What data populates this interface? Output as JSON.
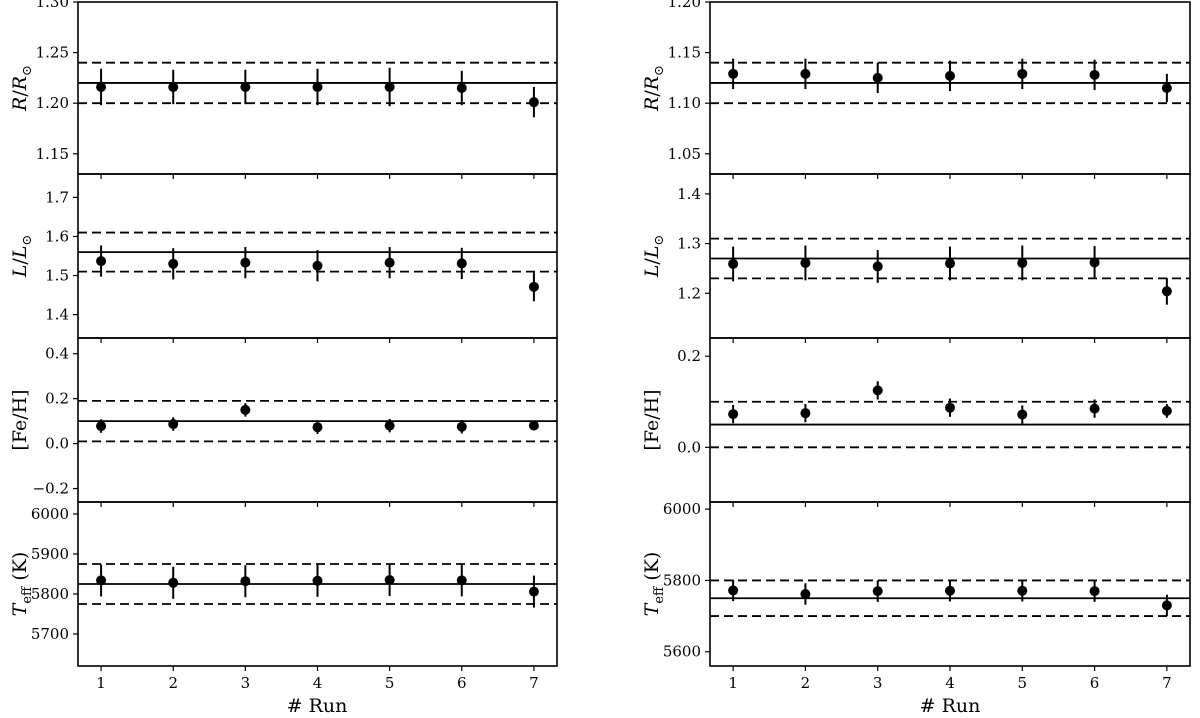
{
  "figure": {
    "xlabel": "# Run",
    "colors": {
      "marker": "#000000",
      "line": "#000000",
      "background": "#ffffff"
    }
  },
  "chart_data": [
    {
      "type": "scatter",
      "column": "left",
      "panel": "radius",
      "ylabel_main": "R",
      "ylabel_sub": "R",
      "ylabel_sub_symbol": "⊙",
      "ylim": [
        1.13,
        1.3
      ],
      "yticks": [
        "1.15",
        "1.20",
        "1.25",
        "1.30"
      ],
      "ytick_values": [
        1.15,
        1.2,
        1.25,
        1.3
      ],
      "x": [
        1,
        2,
        3,
        4,
        5,
        6,
        7
      ],
      "y": [
        1.216,
        1.216,
        1.216,
        1.216,
        1.216,
        1.215,
        1.201
      ],
      "yerr": [
        0.018,
        0.017,
        0.017,
        0.018,
        0.019,
        0.017,
        0.015
      ],
      "reference": 1.22,
      "band": [
        1.2,
        1.24
      ]
    },
    {
      "type": "scatter",
      "column": "left",
      "panel": "luminosity",
      "ylabel_main": "L",
      "ylabel_sub": "L",
      "ylabel_sub_symbol": "⊙",
      "ylim": [
        1.34,
        1.76
      ],
      "yticks": [
        "1.4",
        "1.5",
        "1.6",
        "1.7"
      ],
      "ytick_values": [
        1.4,
        1.5,
        1.6,
        1.7
      ],
      "x": [
        1,
        2,
        3,
        4,
        5,
        6,
        7
      ],
      "y": [
        1.537,
        1.53,
        1.533,
        1.525,
        1.533,
        1.531,
        1.471
      ],
      "yerr": [
        0.04,
        0.04,
        0.04,
        0.04,
        0.04,
        0.04,
        0.037
      ],
      "reference": 1.56,
      "band": [
        1.51,
        1.61
      ]
    },
    {
      "type": "scatter",
      "column": "left",
      "panel": "metallicity",
      "ylabel_main": "[Fe/H]",
      "ylim": [
        -0.26,
        0.47
      ],
      "yticks": [
        "−0.2",
        "0.0",
        "0.2",
        "0.4"
      ],
      "ytick_values": [
        -0.2,
        0.0,
        0.2,
        0.4
      ],
      "x": [
        1,
        2,
        3,
        4,
        5,
        6,
        7
      ],
      "y": [
        0.078,
        0.087,
        0.15,
        0.073,
        0.08,
        0.075,
        0.08
      ],
      "yerr": [
        0.03,
        0.03,
        0.03,
        0.03,
        0.03,
        0.03,
        0.015
      ],
      "reference": 0.1,
      "band": [
        0.01,
        0.19
      ]
    },
    {
      "type": "scatter",
      "column": "left",
      "panel": "temperature",
      "ylabel_main": "T",
      "ylabel_sub": "eff",
      "ylabel_unit": "(K)",
      "ylim": [
        5620,
        6030
      ],
      "yticks": [
        "5700",
        "5800",
        "5900",
        "6000"
      ],
      "ytick_values": [
        5700,
        5800,
        5900,
        6000
      ],
      "x": [
        1,
        2,
        3,
        4,
        5,
        6,
        7
      ],
      "y": [
        5834,
        5828,
        5832,
        5833,
        5835,
        5834,
        5806
      ],
      "yerr": [
        40,
        40,
        40,
        40,
        40,
        40,
        40
      ],
      "reference": 5825,
      "band": [
        5775,
        5875
      ]
    },
    {
      "type": "scatter",
      "column": "right",
      "panel": "radius",
      "ylabel_main": "R",
      "ylabel_sub": "R",
      "ylabel_sub_symbol": "⊙",
      "ylim": [
        1.03,
        1.2
      ],
      "yticks": [
        "1.05",
        "1.10",
        "1.15",
        "1.20"
      ],
      "ytick_values": [
        1.05,
        1.1,
        1.15,
        1.2
      ],
      "x": [
        1,
        2,
        3,
        4,
        5,
        6,
        7
      ],
      "y": [
        1.129,
        1.129,
        1.125,
        1.127,
        1.129,
        1.128,
        1.115
      ],
      "yerr": [
        0.015,
        0.015,
        0.015,
        0.015,
        0.015,
        0.015,
        0.014
      ],
      "reference": 1.12,
      "band": [
        1.1,
        1.14
      ]
    },
    {
      "type": "scatter",
      "column": "right",
      "panel": "luminosity",
      "ylabel_main": "L",
      "ylabel_sub": "L",
      "ylabel_sub_symbol": "⊙",
      "ylim": [
        1.11,
        1.44
      ],
      "yticks": [
        "1.2",
        "1.3",
        "1.4"
      ],
      "ytick_values": [
        1.2,
        1.3,
        1.4
      ],
      "x": [
        1,
        2,
        3,
        4,
        5,
        6,
        7
      ],
      "y": [
        1.259,
        1.261,
        1.254,
        1.26,
        1.261,
        1.262,
        1.204
      ],
      "yerr": [
        0.035,
        0.035,
        0.033,
        0.034,
        0.035,
        0.033,
        0.027
      ],
      "reference": 1.27,
      "band": [
        1.23,
        1.31
      ]
    },
    {
      "type": "scatter",
      "column": "right",
      "panel": "metallicity",
      "ylabel_main": "[Fe/H]",
      "ylim": [
        -0.12,
        0.24
      ],
      "yticks": [
        "0.0",
        "0.2"
      ],
      "ytick_values": [
        0.0,
        0.2
      ],
      "x": [
        1,
        2,
        3,
        4,
        5,
        6,
        7
      ],
      "y": [
        0.073,
        0.075,
        0.125,
        0.087,
        0.072,
        0.085,
        0.08
      ],
      "yerr": [
        0.02,
        0.02,
        0.02,
        0.02,
        0.02,
        0.02,
        0.015
      ],
      "reference": 0.05,
      "band": [
        0.0,
        0.1
      ]
    },
    {
      "type": "scatter",
      "column": "right",
      "panel": "temperature",
      "ylabel_main": "T",
      "ylabel_sub": "eff",
      "ylabel_unit": "(K)",
      "ylim": [
        5560,
        6020
      ],
      "yticks": [
        "5600",
        "5800",
        "6000"
      ],
      "ytick_values": [
        5600,
        5800,
        6000
      ],
      "x": [
        1,
        2,
        3,
        4,
        5,
        6,
        7
      ],
      "y": [
        5772,
        5762,
        5770,
        5771,
        5771,
        5770,
        5730
      ],
      "yerr": [
        30,
        30,
        30,
        30,
        30,
        30,
        30
      ],
      "reference": 5750,
      "band": [
        5700,
        5800
      ]
    }
  ]
}
